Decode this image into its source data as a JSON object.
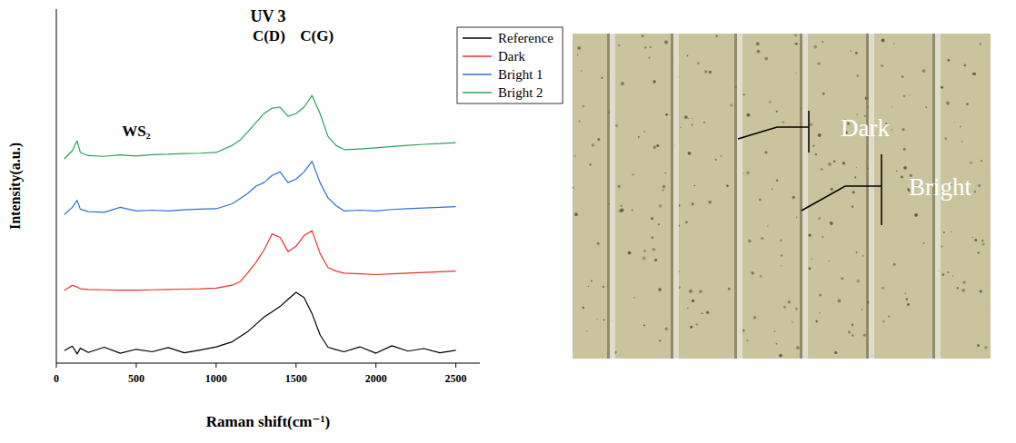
{
  "chart_data": {
    "type": "line",
    "title": "UV 3",
    "x_label": "Raman shift(cm⁻¹)",
    "y_label": "Intensity(a.u.)",
    "x": [
      50,
      100,
      130,
      150,
      200,
      300,
      400,
      500,
      600,
      700,
      800,
      900,
      1000,
      1100,
      1150,
      1200,
      1250,
      1300,
      1350,
      1400,
      1450,
      1500,
      1550,
      1600,
      1650,
      1700,
      1750,
      1800,
      1900,
      2000,
      2100,
      2200,
      2300,
      2400,
      2500
    ],
    "series": [
      {
        "name": "Reference",
        "color": "#000000",
        "values": [
          3.5,
          4.8,
          2.6,
          4.2,
          3.0,
          4.5,
          2.8,
          3.9,
          3.2,
          4.4,
          2.9,
          3.7,
          4.6,
          6.0,
          7.5,
          9.0,
          11.0,
          13.0,
          14.5,
          16.0,
          18.0,
          20.0,
          18.5,
          14.0,
          8.0,
          4.5,
          3.8,
          3.2,
          4.6,
          2.8,
          4.9,
          3.4,
          4.1,
          2.9,
          3.6
        ]
      },
      {
        "name": "Dark",
        "color": "#e8322e",
        "values": [
          20.5,
          22.0,
          21.5,
          21.0,
          20.8,
          20.7,
          20.6,
          20.6,
          20.7,
          20.8,
          20.9,
          21.0,
          21.2,
          22.0,
          23.0,
          25.6,
          28.5,
          32.0,
          36.5,
          35.5,
          31.5,
          33.0,
          36.0,
          37.4,
          31.0,
          27.0,
          26.0,
          25.4,
          25.2,
          25.0,
          25.2,
          25.4,
          25.6,
          25.8,
          26.0
        ]
      },
      {
        "name": "Bright 1",
        "color": "#2c6fd6",
        "values": [
          42.0,
          44.0,
          46.0,
          43.5,
          42.8,
          42.6,
          44.0,
          43.0,
          43.2,
          43.0,
          43.3,
          43.5,
          43.6,
          45.0,
          46.5,
          48.0,
          50.0,
          51.0,
          53.0,
          54.0,
          51.0,
          52.0,
          54.0,
          57.0,
          51.0,
          46.7,
          44.5,
          43.0,
          43.2,
          43.0,
          43.4,
          43.6,
          43.8,
          44.0,
          44.2
        ]
      },
      {
        "name": "Bright 2",
        "color": "#2ca05a",
        "values": [
          57.7,
          60.0,
          62.8,
          59.5,
          58.6,
          58.4,
          58.8,
          58.5,
          58.9,
          59.0,
          59.2,
          59.3,
          59.5,
          61.5,
          63.0,
          65.4,
          68.0,
          70.5,
          72.0,
          72.3,
          69.7,
          70.5,
          72.3,
          75.6,
          70.5,
          64.0,
          61.5,
          60.3,
          60.5,
          60.8,
          61.2,
          61.5,
          61.8,
          62.0,
          62.3
        ]
      }
    ],
    "annotations": [
      {
        "text": "WS₂",
        "x": 500,
        "y": 64
      },
      {
        "text": "C(D)",
        "x": 1330,
        "y": 91
      },
      {
        "text": "C(G)",
        "x": 1630,
        "y": 91
      }
    ],
    "xlim": [
      0,
      2650
    ],
    "xticks": [
      0,
      500,
      1000,
      1500,
      2000,
      2500
    ],
    "ylim": [
      0,
      100
    ],
    "yticks": [],
    "tick_labels": "x",
    "legend": "upper right",
    "grid": false
  },
  "image": {
    "labels": [
      "Dark",
      "Bright"
    ]
  }
}
